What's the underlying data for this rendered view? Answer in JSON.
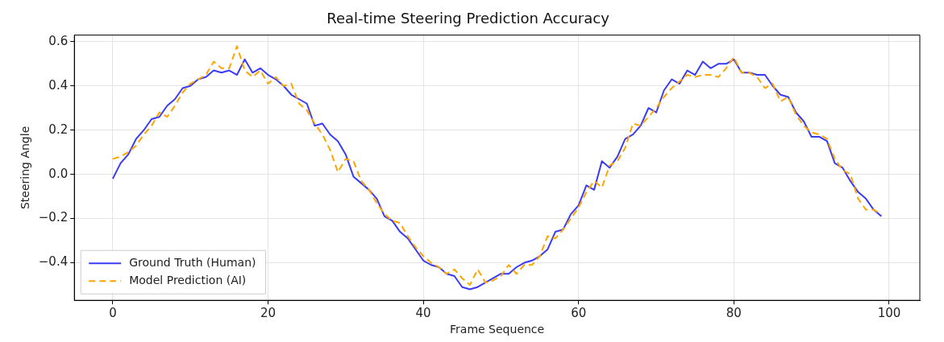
{
  "chart_data": {
    "type": "line",
    "title": "Real-time Steering Prediction Accuracy",
    "xlabel": "Frame Sequence",
    "ylabel": "Steering Angle",
    "x": [
      0,
      1,
      2,
      3,
      4,
      5,
      6,
      7,
      8,
      9,
      10,
      11,
      12,
      13,
      14,
      15,
      16,
      17,
      18,
      19,
      20,
      21,
      22,
      23,
      24,
      25,
      26,
      27,
      28,
      29,
      30,
      31,
      32,
      33,
      34,
      35,
      36,
      37,
      38,
      39,
      40,
      41,
      42,
      43,
      44,
      45,
      46,
      47,
      48,
      49,
      50,
      51,
      52,
      53,
      54,
      55,
      56,
      57,
      58,
      59,
      60,
      61,
      62,
      63,
      64,
      65,
      66,
      67,
      68,
      69,
      70,
      71,
      72,
      73,
      74,
      75,
      76,
      77,
      78,
      79,
      80,
      81,
      82,
      83,
      84,
      85,
      86,
      87,
      88,
      89,
      90,
      91,
      92,
      93,
      94,
      95,
      96,
      97,
      98,
      99
    ],
    "series": [
      {
        "name": "Ground Truth (Human)",
        "color": "#3b3bf5",
        "line_style": "solid",
        "values": [
          -0.02,
          0.05,
          0.09,
          0.16,
          0.2,
          0.25,
          0.26,
          0.31,
          0.34,
          0.39,
          0.4,
          0.43,
          0.44,
          0.47,
          0.46,
          0.47,
          0.45,
          0.52,
          0.46,
          0.48,
          0.45,
          0.43,
          0.4,
          0.36,
          0.34,
          0.32,
          0.22,
          0.23,
          0.18,
          0.15,
          0.09,
          -0.01,
          -0.04,
          -0.07,
          -0.11,
          -0.19,
          -0.21,
          -0.26,
          -0.29,
          -0.34,
          -0.39,
          -0.41,
          -0.42,
          -0.45,
          -0.46,
          -0.51,
          -0.52,
          -0.51,
          -0.49,
          -0.47,
          -0.45,
          -0.45,
          -0.42,
          -0.4,
          -0.39,
          -0.37,
          -0.34,
          -0.26,
          -0.25,
          -0.18,
          -0.14,
          -0.05,
          -0.07,
          0.06,
          0.03,
          0.08,
          0.16,
          0.18,
          0.22,
          0.3,
          0.28,
          0.38,
          0.43,
          0.41,
          0.47,
          0.45,
          0.51,
          0.48,
          0.5,
          0.5,
          0.52,
          0.46,
          0.46,
          0.45,
          0.45,
          0.4,
          0.36,
          0.35,
          0.28,
          0.24,
          0.17,
          0.17,
          0.15,
          0.05,
          0.03,
          -0.03,
          -0.08,
          -0.11,
          -0.16,
          -0.19
        ]
      },
      {
        "name": "Model Prediction (AI)",
        "color": "#ffa500",
        "line_style": "dashed",
        "values": [
          0.07,
          0.08,
          0.1,
          0.13,
          0.18,
          0.22,
          0.28,
          0.26,
          0.31,
          0.37,
          0.41,
          0.43,
          0.45,
          0.51,
          0.48,
          0.48,
          0.58,
          0.47,
          0.44,
          0.47,
          0.41,
          0.44,
          0.4,
          0.41,
          0.32,
          0.29,
          0.23,
          0.18,
          0.11,
          0.01,
          0.07,
          0.06,
          -0.03,
          -0.07,
          -0.13,
          -0.18,
          -0.21,
          -0.22,
          -0.28,
          -0.33,
          -0.37,
          -0.4,
          -0.42,
          -0.45,
          -0.43,
          -0.47,
          -0.5,
          -0.43,
          -0.49,
          -0.48,
          -0.46,
          -0.41,
          -0.45,
          -0.41,
          -0.41,
          -0.37,
          -0.28,
          -0.29,
          -0.25,
          -0.2,
          -0.15,
          -0.08,
          -0.03,
          -0.06,
          0.04,
          0.06,
          0.12,
          0.23,
          0.22,
          0.26,
          0.3,
          0.35,
          0.39,
          0.42,
          0.45,
          0.44,
          0.45,
          0.45,
          0.44,
          0.48,
          0.53,
          0.46,
          0.46,
          0.44,
          0.39,
          0.41,
          0.33,
          0.35,
          0.27,
          0.22,
          0.19,
          0.18,
          0.16,
          0.07,
          0.02,
          0.0,
          -0.11,
          -0.16,
          -0.16,
          -0.18
        ]
      }
    ],
    "xlim": [
      -4.95,
      103.95
    ],
    "xticks": [
      0,
      20,
      40,
      60,
      80,
      100
    ],
    "ylim": [
      -0.57,
      0.63
    ],
    "yticks": [
      {
        "value": -0.4,
        "label": "−0.4"
      },
      {
        "value": -0.2,
        "label": "−0.2"
      },
      {
        "value": 0,
        "label": "0.0"
      },
      0.2,
      0.4,
      0.6
    ],
    "grid": true,
    "legend": "bottom left",
    "marker": "none"
  }
}
